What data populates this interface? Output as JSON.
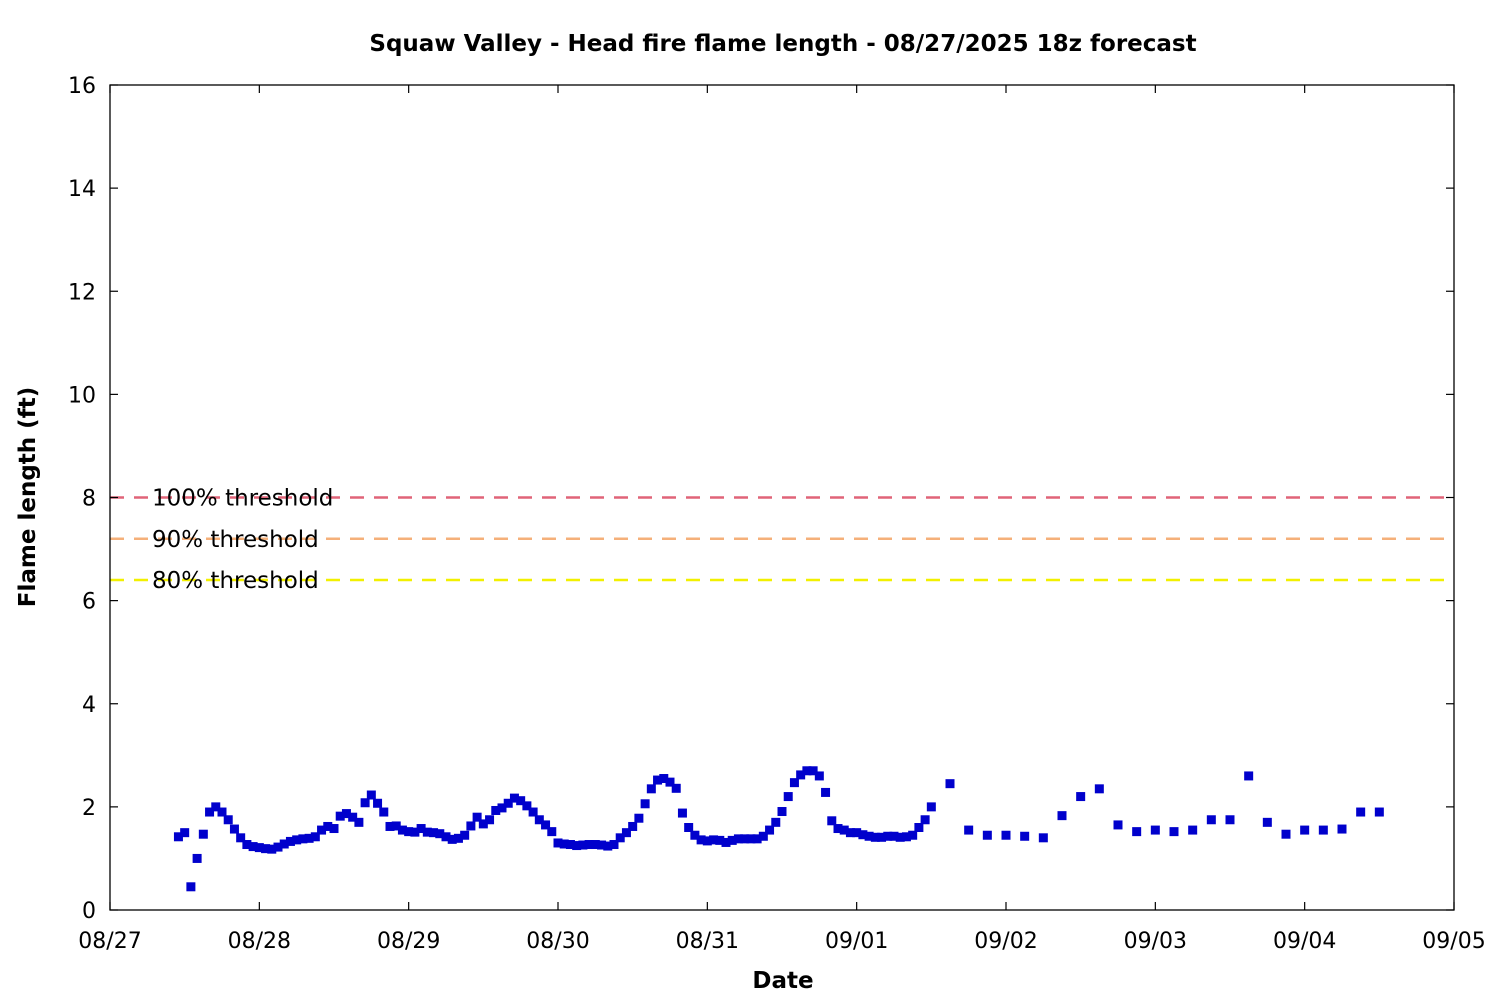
{
  "chart_data": {
    "type": "scatter",
    "title": "Squaw Valley - Head fire flame length - 08/27/2025 18z forecast",
    "xlabel": "Date",
    "ylabel": "Flame length (ft)",
    "x_tick_labels": [
      "08/27",
      "08/28",
      "08/29",
      "08/30",
      "08/31",
      "09/01",
      "09/02",
      "09/03",
      "09/04",
      "09/05"
    ],
    "y_tick_labels": [
      "0",
      "2",
      "4",
      "6",
      "8",
      "10",
      "12",
      "14",
      "16"
    ],
    "xlim": [
      "08/27",
      "09/05"
    ],
    "ylim": [
      0,
      16
    ],
    "grid": false,
    "reference_lines": [
      {
        "label": "100% threshold",
        "value": 8.0,
        "color": "#e06478"
      },
      {
        "label": "90% threshold",
        "value": 7.2,
        "color": "#f5b07a"
      },
      {
        "label": "80% threshold",
        "value": 6.4,
        "color": "#f2f000"
      }
    ],
    "series": [
      {
        "color": "#0000cc",
        "marker": "square",
        "points": [
          [
            "08/27 11:00",
            1.42
          ],
          [
            "08/27 12:00",
            1.5
          ],
          [
            "08/27 13:00",
            0.45
          ],
          [
            "08/27 14:00",
            1.0
          ],
          [
            "08/27 15:00",
            1.47
          ],
          [
            "08/27 16:00",
            1.9
          ],
          [
            "08/27 17:00",
            2.0
          ],
          [
            "08/27 18:00",
            1.9
          ],
          [
            "08/27 19:00",
            1.75
          ],
          [
            "08/27 20:00",
            1.57
          ],
          [
            "08/27 21:00",
            1.4
          ],
          [
            "08/27 22:00",
            1.27
          ],
          [
            "08/27 23:00",
            1.23
          ],
          [
            "08/28 00:00",
            1.21
          ],
          [
            "08/28 01:00",
            1.19
          ],
          [
            "08/28 02:00",
            1.18
          ],
          [
            "08/28 03:00",
            1.22
          ],
          [
            "08/28 04:00",
            1.28
          ],
          [
            "08/28 05:00",
            1.33
          ],
          [
            "08/28 06:00",
            1.36
          ],
          [
            "08/28 07:00",
            1.38
          ],
          [
            "08/28 08:00",
            1.39
          ],
          [
            "08/28 09:00",
            1.42
          ],
          [
            "08/28 10:00",
            1.55
          ],
          [
            "08/28 11:00",
            1.62
          ],
          [
            "08/28 12:00",
            1.58
          ],
          [
            "08/28 13:00",
            1.82
          ],
          [
            "08/28 14:00",
            1.87
          ],
          [
            "08/28 15:00",
            1.8
          ],
          [
            "08/28 16:00",
            1.7
          ],
          [
            "08/28 17:00",
            2.08
          ],
          [
            "08/28 18:00",
            2.23
          ],
          [
            "08/28 19:00",
            2.07
          ],
          [
            "08/28 20:00",
            1.9
          ],
          [
            "08/28 21:00",
            1.62
          ],
          [
            "08/28 22:00",
            1.63
          ],
          [
            "08/28 23:00",
            1.55
          ],
          [
            "08/29 00:00",
            1.52
          ],
          [
            "08/29 01:00",
            1.51
          ],
          [
            "08/29 02:00",
            1.58
          ],
          [
            "08/29 03:00",
            1.51
          ],
          [
            "08/29 04:00",
            1.5
          ],
          [
            "08/29 05:00",
            1.48
          ],
          [
            "08/29 06:00",
            1.42
          ],
          [
            "08/29 07:00",
            1.37
          ],
          [
            "08/29 08:00",
            1.39
          ],
          [
            "08/29 09:00",
            1.45
          ],
          [
            "08/29 10:00",
            1.63
          ],
          [
            "08/29 11:00",
            1.8
          ],
          [
            "08/29 12:00",
            1.67
          ],
          [
            "08/29 13:00",
            1.75
          ],
          [
            "08/29 14:00",
            1.93
          ],
          [
            "08/29 15:00",
            1.98
          ],
          [
            "08/29 16:00",
            2.07
          ],
          [
            "08/29 17:00",
            2.17
          ],
          [
            "08/29 18:00",
            2.12
          ],
          [
            "08/29 19:00",
            2.02
          ],
          [
            "08/29 20:00",
            1.9
          ],
          [
            "08/29 21:00",
            1.75
          ],
          [
            "08/29 22:00",
            1.65
          ],
          [
            "08/29 23:00",
            1.52
          ],
          [
            "08/30 00:00",
            1.3
          ],
          [
            "08/30 01:00",
            1.28
          ],
          [
            "08/30 02:00",
            1.27
          ],
          [
            "08/30 03:00",
            1.25
          ],
          [
            "08/30 04:00",
            1.26
          ],
          [
            "08/30 05:00",
            1.27
          ],
          [
            "08/30 06:00",
            1.27
          ],
          [
            "08/30 07:00",
            1.26
          ],
          [
            "08/30 08:00",
            1.24
          ],
          [
            "08/30 09:00",
            1.27
          ],
          [
            "08/30 10:00",
            1.4
          ],
          [
            "08/30 11:00",
            1.5
          ],
          [
            "08/30 12:00",
            1.62
          ],
          [
            "08/30 13:00",
            1.78
          ],
          [
            "08/30 14:00",
            2.06
          ],
          [
            "08/30 15:00",
            2.35
          ],
          [
            "08/30 16:00",
            2.52
          ],
          [
            "08/30 17:00",
            2.55
          ],
          [
            "08/30 18:00",
            2.48
          ],
          [
            "08/30 19:00",
            2.36
          ],
          [
            "08/30 20:00",
            1.88
          ],
          [
            "08/30 21:00",
            1.6
          ],
          [
            "08/30 22:00",
            1.45
          ],
          [
            "08/30 23:00",
            1.36
          ],
          [
            "08/31 00:00",
            1.34
          ],
          [
            "08/31 01:00",
            1.36
          ],
          [
            "08/31 02:00",
            1.35
          ],
          [
            "08/31 03:00",
            1.31
          ],
          [
            "08/31 04:00",
            1.35
          ],
          [
            "08/31 05:00",
            1.38
          ],
          [
            "08/31 06:00",
            1.38
          ],
          [
            "08/31 07:00",
            1.38
          ],
          [
            "08/31 08:00",
            1.38
          ],
          [
            "08/31 09:00",
            1.43
          ],
          [
            "08/31 10:00",
            1.55
          ],
          [
            "08/31 11:00",
            1.7
          ],
          [
            "08/31 12:00",
            1.91
          ],
          [
            "08/31 13:00",
            2.2
          ],
          [
            "08/31 14:00",
            2.47
          ],
          [
            "08/31 15:00",
            2.62
          ],
          [
            "08/31 16:00",
            2.7
          ],
          [
            "08/31 17:00",
            2.7
          ],
          [
            "08/31 18:00",
            2.6
          ],
          [
            "08/31 19:00",
            2.28
          ],
          [
            "08/31 20:00",
            1.73
          ],
          [
            "08/31 21:00",
            1.58
          ],
          [
            "08/31 22:00",
            1.55
          ],
          [
            "08/31 23:00",
            1.5
          ],
          [
            "09/01 00:00",
            1.5
          ],
          [
            "09/01 01:00",
            1.46
          ],
          [
            "09/01 02:00",
            1.43
          ],
          [
            "09/01 03:00",
            1.41
          ],
          [
            "09/01 04:00",
            1.41
          ],
          [
            "09/01 05:00",
            1.43
          ],
          [
            "09/01 06:00",
            1.43
          ],
          [
            "09/01 07:00",
            1.41
          ],
          [
            "09/01 08:00",
            1.42
          ],
          [
            "09/01 09:00",
            1.45
          ],
          [
            "09/01 10:00",
            1.6
          ],
          [
            "09/01 11:00",
            1.75
          ],
          [
            "09/01 12:00",
            2.0
          ],
          [
            "09/01 15:00",
            2.45
          ],
          [
            "09/01 18:00",
            1.55
          ],
          [
            "09/01 21:00",
            1.45
          ],
          [
            "09/02 00:00",
            1.45
          ],
          [
            "09/02 03:00",
            1.43
          ],
          [
            "09/02 06:00",
            1.4
          ],
          [
            "09/02 09:00",
            1.83
          ],
          [
            "09/02 12:00",
            2.2
          ],
          [
            "09/02 15:00",
            2.35
          ],
          [
            "09/02 18:00",
            1.65
          ],
          [
            "09/02 21:00",
            1.52
          ],
          [
            "09/03 00:00",
            1.55
          ],
          [
            "09/03 03:00",
            1.52
          ],
          [
            "09/03 06:00",
            1.55
          ],
          [
            "09/03 09:00",
            1.75
          ],
          [
            "09/03 12:00",
            1.75
          ],
          [
            "09/03 15:00",
            2.6
          ],
          [
            "09/03 18:00",
            1.7
          ],
          [
            "09/03 21:00",
            1.47
          ],
          [
            "09/04 00:00",
            1.55
          ],
          [
            "09/04 03:00",
            1.55
          ],
          [
            "09/04 06:00",
            1.57
          ],
          [
            "09/04 09:00",
            1.9
          ],
          [
            "09/04 12:00",
            1.9
          ]
        ]
      }
    ]
  }
}
